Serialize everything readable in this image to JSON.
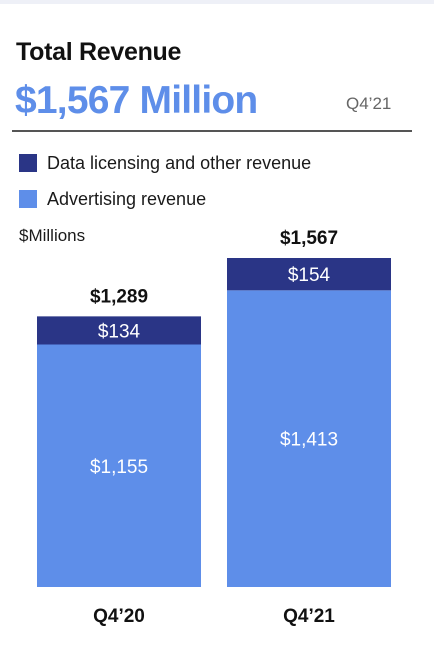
{
  "title": "Total Revenue",
  "headline": {
    "value": "$1,567 Million",
    "period": "Q4’21"
  },
  "legend": [
    {
      "label": "Data licensing and other revenue",
      "color": "#2a3586"
    },
    {
      "label": "Advertising revenue",
      "color": "#5e8ee9"
    }
  ],
  "unit_label": "$Millions",
  "chart_data": {
    "type": "bar",
    "stacked": true,
    "categories": [
      "Q4’20",
      "Q4’21"
    ],
    "series": [
      {
        "name": "Advertising revenue",
        "color": "#5e8ee9",
        "values": [
          1155,
          1413
        ],
        "labels": [
          "$1,155",
          "$1,413"
        ]
      },
      {
        "name": "Data licensing and other revenue",
        "color": "#2a3586",
        "values": [
          134,
          154
        ],
        "labels": [
          "$134",
          "$154"
        ]
      }
    ],
    "totals": [
      1289,
      1567
    ],
    "total_labels": [
      "$1,289",
      "$1,567"
    ],
    "ylim": [
      0,
      1567
    ]
  }
}
